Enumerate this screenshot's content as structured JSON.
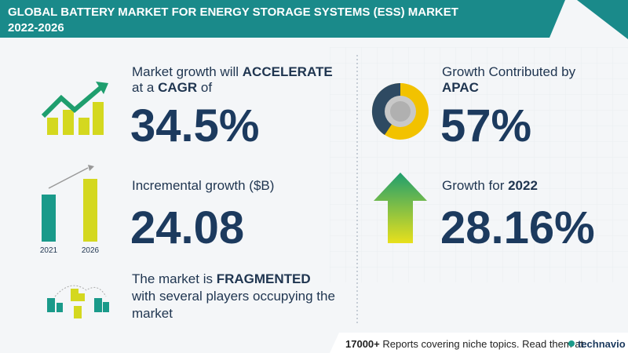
{
  "header": {
    "title_line1": "GLOBAL BATTERY MARKET FOR ENERGY STORAGE SYSTEMS (ESS) MARKET",
    "title_line2": "2022-2026"
  },
  "stats": {
    "cagr": {
      "text_before": "Market growth will",
      "emphasis": "ACCELERATE",
      "text_mid": "at a",
      "emphasis2": "CAGR",
      "text_after": "of",
      "value": "34.5%"
    },
    "incremental": {
      "label": "Incremental growth ($B)",
      "value": "24.08",
      "year_start": "2021",
      "year_end": "2026"
    },
    "fragmented": {
      "text_before": "The market is",
      "emphasis": "FRAGMENTED",
      "line2": "with several players occupying the",
      "line3": "market"
    },
    "region": {
      "label": "Growth Contributed by",
      "region": "APAC",
      "value": "57%"
    },
    "growth_year": {
      "label": "Growth for",
      "year": "2022",
      "value": "28.16%"
    }
  },
  "footer": {
    "count": "17000+",
    "text": "Reports covering niche topics. Read them at",
    "brand": "technavio"
  }
}
